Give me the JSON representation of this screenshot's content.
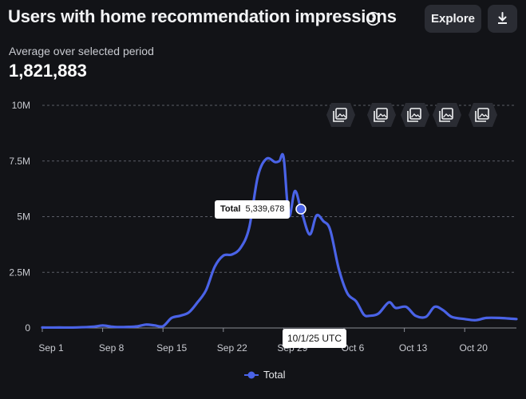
{
  "header": {
    "title": "Users with home recommendation impressions",
    "explore_label": "Explore"
  },
  "summary": {
    "label": "Average over selected period",
    "value": "1,821,883"
  },
  "tooltip": {
    "series": "Total",
    "value": "5,339,678",
    "date": "10/1/25 UTC"
  },
  "colors": {
    "background": "#121317",
    "series": "#4a63e7",
    "grid": "#5a5d66",
    "button": "#2a2c33"
  },
  "icons": {
    "info": "info-icon",
    "download": "download-icon",
    "annotation": "image-stack-icon"
  },
  "chart_data": {
    "type": "line",
    "x_ticks": [
      "Sep 1",
      "Sep 8",
      "Sep 15",
      "Sep 22",
      "Sep 29",
      "Oct 6",
      "Oct 13",
      "Oct 20"
    ],
    "y_ticks": [
      "0",
      "2.5M",
      "5M",
      "7.5M",
      "10M"
    ],
    "ylim": [
      0,
      10000000
    ],
    "x_range_days": [
      0,
      55
    ],
    "grid": true,
    "legend": "bottom-center",
    "series": [
      {
        "name": "Total",
        "points": [
          [
            0,
            20000
          ],
          [
            2,
            20000
          ],
          [
            4,
            25000
          ],
          [
            6,
            60000
          ],
          [
            7,
            110000
          ],
          [
            8,
            60000
          ],
          [
            9,
            40000
          ],
          [
            10,
            50000
          ],
          [
            11,
            70000
          ],
          [
            12,
            150000
          ],
          [
            13,
            120000
          ],
          [
            14,
            80000
          ],
          [
            15,
            450000
          ],
          [
            16,
            550000
          ],
          [
            17,
            700000
          ],
          [
            18,
            1150000
          ],
          [
            19,
            1700000
          ],
          [
            20,
            2750000
          ],
          [
            21,
            3250000
          ],
          [
            22,
            3300000
          ],
          [
            23,
            3600000
          ],
          [
            24,
            4500000
          ],
          [
            25,
            6800000
          ],
          [
            26,
            7600000
          ],
          [
            27,
            7450000
          ],
          [
            27.5,
            7500000
          ],
          [
            28,
            7650000
          ],
          [
            28.6,
            5050000
          ],
          [
            29.3,
            6150000
          ],
          [
            30,
            5339678
          ],
          [
            31,
            4200000
          ],
          [
            31.8,
            5050000
          ],
          [
            32.6,
            4800000
          ],
          [
            33.4,
            4400000
          ],
          [
            34.4,
            2650000
          ],
          [
            35.4,
            1550000
          ],
          [
            36.4,
            1200000
          ],
          [
            37.3,
            600000
          ],
          [
            38,
            550000
          ],
          [
            39,
            650000
          ],
          [
            40.2,
            1150000
          ],
          [
            41,
            900000
          ],
          [
            42.2,
            950000
          ],
          [
            43.3,
            550000
          ],
          [
            44.5,
            500000
          ],
          [
            45.5,
            950000
          ],
          [
            46.5,
            800000
          ],
          [
            47.5,
            500000
          ],
          [
            49,
            400000
          ],
          [
            50.3,
            350000
          ],
          [
            51.5,
            450000
          ],
          [
            53,
            450000
          ],
          [
            55,
            400000
          ]
        ]
      }
    ]
  }
}
